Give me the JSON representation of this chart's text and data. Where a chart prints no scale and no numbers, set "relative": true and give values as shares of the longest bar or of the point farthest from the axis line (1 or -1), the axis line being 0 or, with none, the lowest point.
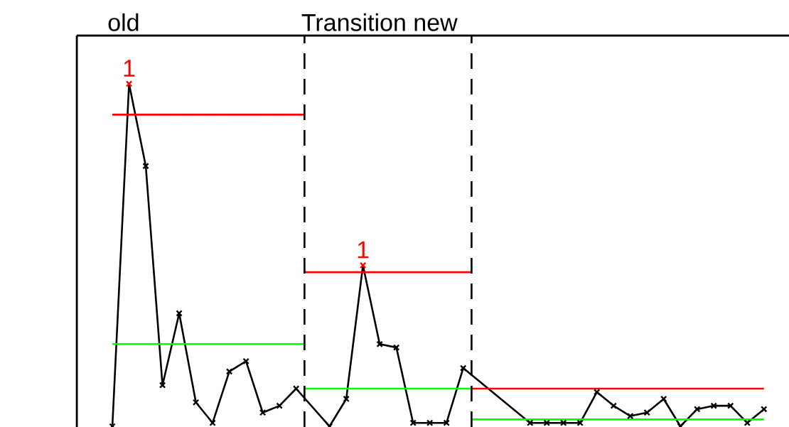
{
  "chart_data": {
    "type": "line",
    "relative": true,
    "marker": "cross",
    "categories": [
      null,
      null,
      null,
      null,
      null,
      null,
      null,
      null,
      null,
      null,
      null,
      null,
      null,
      null,
      null,
      null,
      null,
      null,
      null,
      null,
      null,
      null,
      null,
      null,
      null,
      null,
      null,
      null,
      null,
      null,
      null,
      null,
      null,
      null,
      null,
      null,
      null,
      null,
      null,
      null
    ],
    "series": [
      {
        "color": "#000000",
        "colors": [
          "#000000",
          "#ff0000",
          "#000000",
          "#000000",
          "#000000",
          "#000000",
          "#000000",
          "#000000",
          "#000000",
          "#000000",
          "#000000",
          "#000000",
          "#000000",
          "#000000",
          "#000000",
          "#ff0000",
          "#000000",
          "#000000",
          "#000000",
          "#000000",
          "#000000",
          "#000000",
          "#000000",
          "#000000",
          "#000000",
          "#000000",
          "#000000",
          "#000000",
          "#000000",
          "#000000",
          "#000000",
          "#000000",
          "#000000",
          "#000000",
          "#000000",
          "#000000",
          "#000000",
          "#000000",
          "#000000",
          "#000000"
        ],
        "values": [
          0.0,
          1.0,
          0.76,
          0.12,
          0.33,
          0.07,
          0.01,
          0.16,
          0.19,
          0.04,
          0.06,
          0.11,
          null,
          0.0,
          0.08,
          0.47,
          0.24,
          0.23,
          0.01,
          0.01,
          0.01,
          0.17,
          null,
          null,
          null,
          0.01,
          0.01,
          0.01,
          0.01,
          0.1,
          0.06,
          0.03,
          0.04,
          0.08,
          0.0,
          0.05,
          0.06,
          0.06,
          0.01,
          0.05
        ]
      },
      {
        "type": "step",
        "marker": "none",
        "color": "#ff0000",
        "values": [
          0.91,
          0.91,
          0.91,
          0.91,
          0.91,
          0.91,
          0.91,
          0.91,
          0.91,
          0.91,
          0.91,
          0.91,
          0.45,
          0.45,
          0.45,
          0.45,
          0.45,
          0.45,
          0.45,
          0.45,
          0.45,
          0.45,
          0.11,
          0.11,
          0.11,
          0.11,
          0.11,
          0.11,
          0.11,
          0.11,
          0.11,
          0.11,
          0.11,
          0.11,
          0.11,
          0.11,
          0.11,
          0.11,
          0.11,
          0.11
        ]
      },
      {
        "type": "step",
        "marker": "none",
        "color": "#00ff00",
        "values": [
          0.24,
          0.24,
          0.24,
          0.24,
          0.24,
          0.24,
          0.24,
          0.24,
          0.24,
          0.24,
          0.24,
          0.24,
          0.11,
          0.11,
          0.11,
          0.11,
          0.11,
          0.11,
          0.11,
          0.11,
          0.11,
          0.11,
          0.02,
          0.02,
          0.02,
          0.02,
          0.02,
          0.02,
          0.02,
          0.02,
          0.02,
          0.02,
          0.02,
          0.02,
          0.02,
          0.02,
          0.02,
          0.02,
          0.02,
          0.02
        ]
      }
    ],
    "annotations": [
      "old",
      "Transition new",
      {
        "text": "1",
        "y": 1.0
      },
      {
        "text": "1",
        "y": 0.47
      }
    ]
  }
}
